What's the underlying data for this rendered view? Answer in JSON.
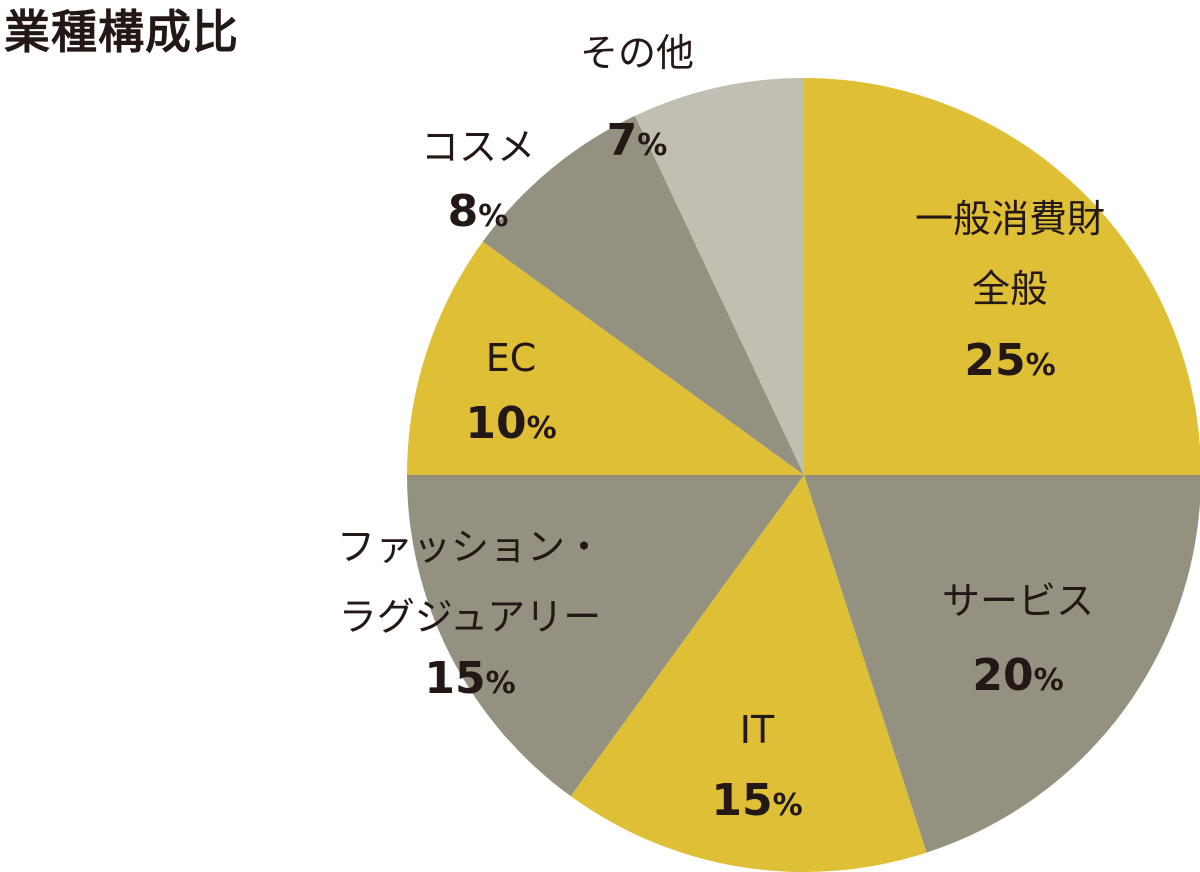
{
  "chart_data": {
    "type": "pie",
    "title": "業種構成比",
    "unit": "%",
    "slices": [
      {
        "label": [
          "一般消費財",
          "全般"
        ],
        "value": 25,
        "color": "#dfbf36"
      },
      {
        "label": [
          "サービス"
        ],
        "value": 20,
        "color": "#959180"
      },
      {
        "label": [
          "IT"
        ],
        "value": 15,
        "color": "#dfbf36"
      },
      {
        "label": [
          "ファッション・",
          "ラグジュアリー"
        ],
        "value": 15,
        "color": "#959180"
      },
      {
        "label": [
          "EC"
        ],
        "value": 10,
        "color": "#dfbf36"
      },
      {
        "label": [
          "コスメ"
        ],
        "value": 8,
        "color": "#959180"
      },
      {
        "label": [
          "その他"
        ],
        "value": 7,
        "color": "#c0bfb1"
      }
    ]
  }
}
